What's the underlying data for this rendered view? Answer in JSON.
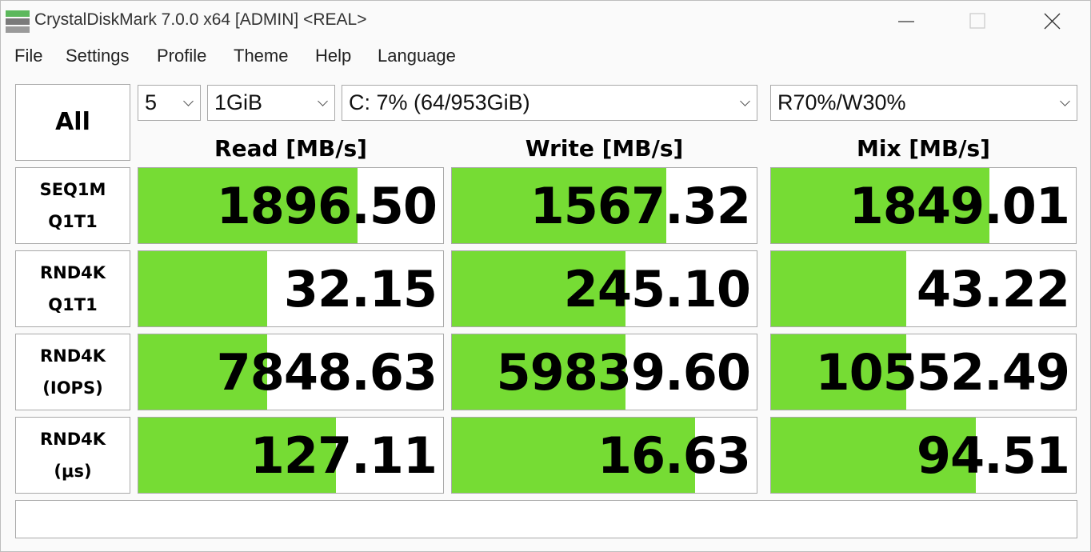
{
  "title": "CrystalDiskMark 7.0.0 x64 [ADMIN] <REAL>",
  "menu": [
    "File",
    "Settings",
    "Profile",
    "Theme",
    "Help",
    "Language"
  ],
  "all_button": "All",
  "selects": [
    "5",
    "1GiB",
    "C: 7% (64/953GiB)",
    "R70%/W30%"
  ],
  "headers": [
    "Read [MB/s]",
    "Write [MB/s]",
    "Mix [MB/s]"
  ],
  "rows": [
    {
      "label": [
        "SEQ1M",
        "Q1T1"
      ],
      "values": [
        1896.5,
        1567.32,
        1849.01
      ],
      "value_labels": [
        "1896.50",
        "1567.32",
        "1849.01"
      ]
    },
    {
      "label": [
        "RND4K",
        "Q1T1"
      ],
      "values": [
        32.15,
        245.1,
        43.22
      ],
      "value_labels": [
        "32.15",
        "245.10",
        "43.22"
      ]
    },
    {
      "label": [
        "RND4K",
        "(IOPS)"
      ],
      "values": [
        7848.63,
        59839.6,
        10552.49
      ],
      "value_labels": [
        "7848.63",
        "59839.60",
        "10552.49"
      ]
    },
    {
      "label": [
        "RND4K",
        "(μs)"
      ],
      "values": [
        127.11,
        16.63,
        94.51
      ],
      "value_labels": [
        "127.11",
        "16.63",
        "94.51"
      ]
    }
  ]
}
